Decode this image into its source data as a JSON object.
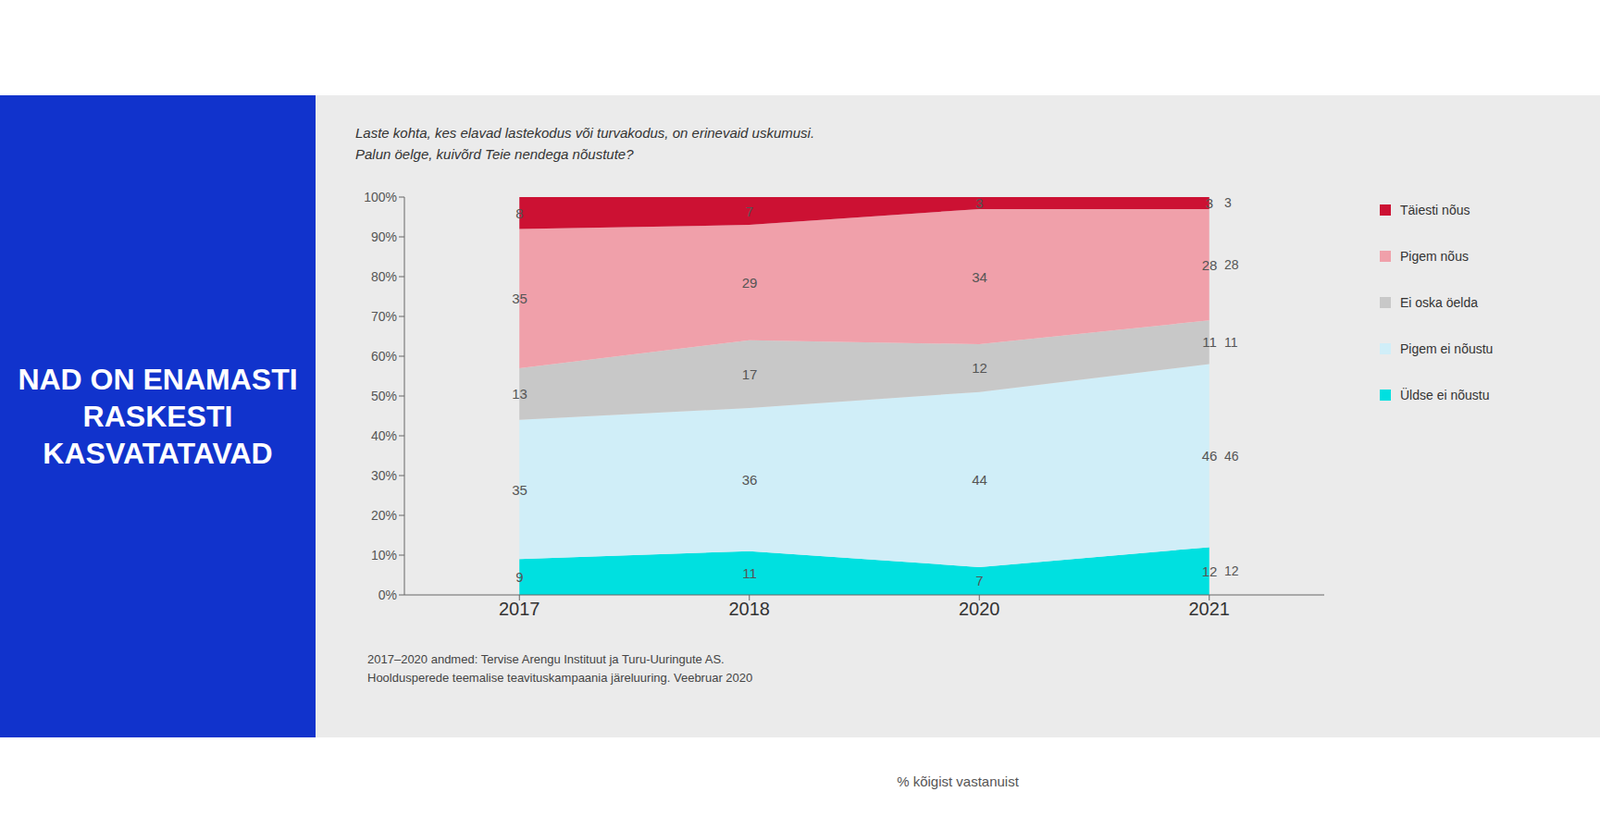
{
  "chart_data": {
    "type": "area",
    "stacked": true,
    "title": "NAD ON ENAMASTI\nRASKESTI\nKASVATATAVAD",
    "subtitle": "Laste kohta, kes elavad lastekodus või turvakodus, on erinevaid uskumusi.\nPalun öelge, kuivõrd Teie nendega nõustute?",
    "xlabel": "% kõigist vastanuist",
    "annotations": [
      "2017–2020 andmed: Tervise Arengu Instituut ja Turu-Uuringute AS.",
      "Hooldusperede teemalise teavituskampaania järeluuring. Veebruar 2020"
    ],
    "categories": [
      "2017",
      "2018",
      "2020",
      "2021"
    ],
    "series": [
      {
        "name": "Üldse ei nõustu",
        "color": "#00e0e0",
        "values": [
          9,
          11,
          7,
          12
        ]
      },
      {
        "name": "Pigem ei nõustu",
        "color": "#d0eef8",
        "values": [
          35,
          36,
          44,
          46
        ]
      },
      {
        "name": "Ei oska öelda",
        "color": "#c8c8c8",
        "values": [
          13,
          17,
          12,
          11
        ]
      },
      {
        "name": "Pigem nõus",
        "color": "#f0a0aa",
        "values": [
          35,
          29,
          34,
          28
        ]
      },
      {
        "name": "Täiesti nõus",
        "color": "#cc1133",
        "values": [
          8,
          7,
          3,
          3
        ]
      }
    ],
    "ylim": [
      0,
      100
    ],
    "yticks": [
      {
        "value": 0,
        "label": "0%"
      },
      {
        "value": 10,
        "label": "10%"
      },
      {
        "value": 20,
        "label": "20%"
      },
      {
        "value": 30,
        "label": "30%"
      },
      {
        "value": 40,
        "label": "40%"
      },
      {
        "value": 50,
        "label": "50%"
      },
      {
        "value": 60,
        "label": "60%"
      },
      {
        "value": 70,
        "label": "70%"
      },
      {
        "value": 80,
        "label": "80%"
      },
      {
        "value": 90,
        "label": "90%"
      },
      {
        "value": 100,
        "label": "100%"
      }
    ],
    "grid": false,
    "legend": "right",
    "data_labels": true
  }
}
